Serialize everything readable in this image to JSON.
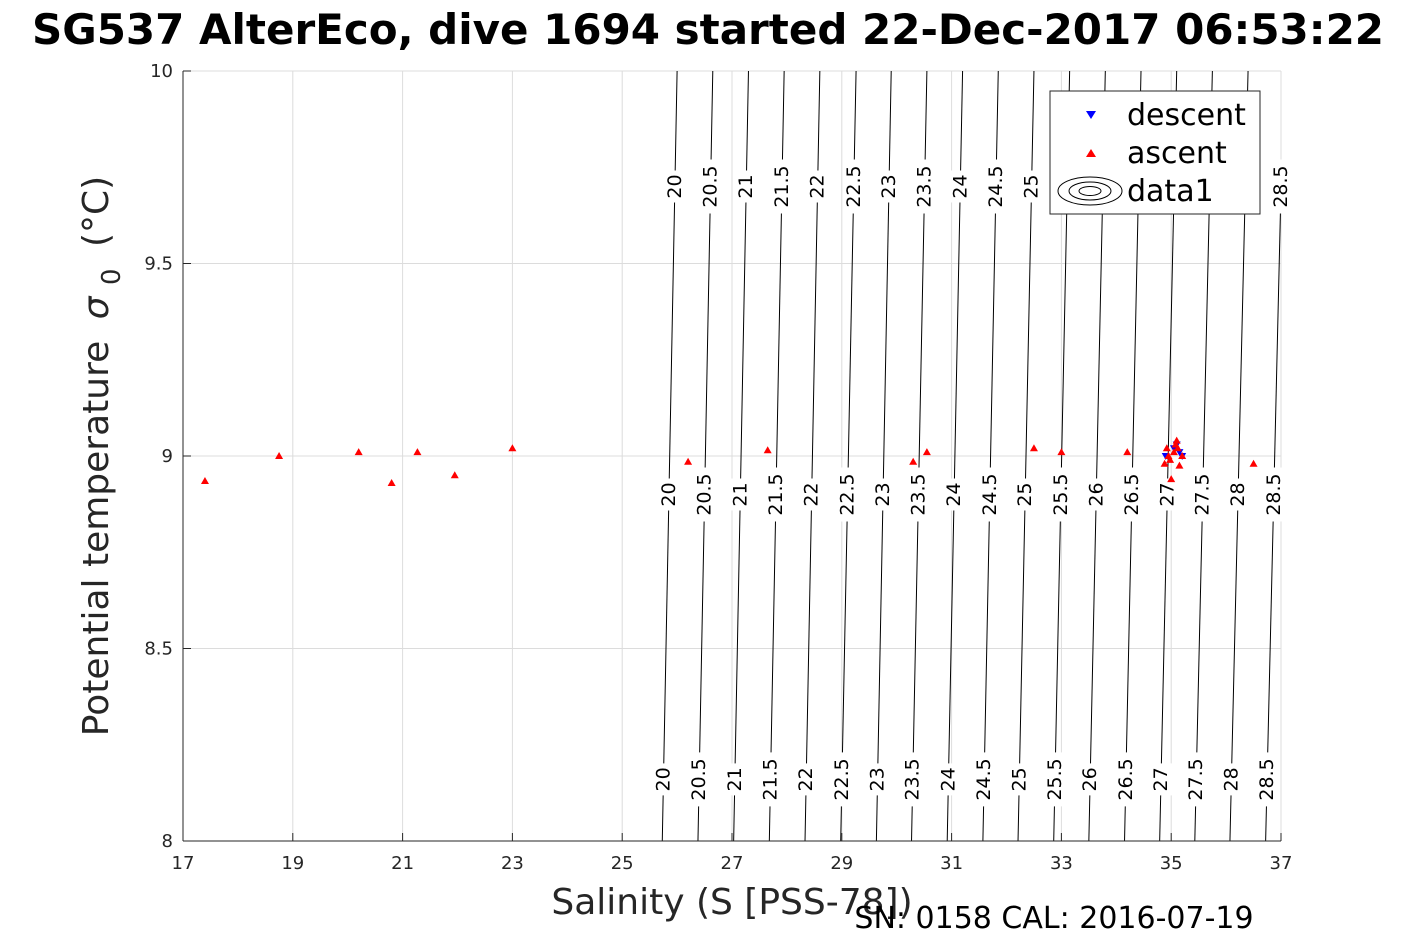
{
  "title": "SG537 AlterEco, dive 1694 started 22-Dec-2017 06:53:22",
  "footer": "SN: 0158  CAL: 2016-07-19",
  "colors": {
    "descent": "#0000ff",
    "ascent": "#ff0000",
    "contour": "#000000",
    "grid": "#dcdcdc",
    "axis": "#262626"
  },
  "chart_data": {
    "type": "scatter",
    "title": "SG537 AlterEco, dive 1694 started 22-Dec-2017 06:53:22",
    "xlabel": "Salinity (S [PSS-78])",
    "ylabel": "Potential temperature",
    "ylabel_symbol": "σ",
    "ylabel_sub": "0",
    "ylabel_unit": "(°C)",
    "xlim": [
      17,
      37
    ],
    "ylim": [
      8,
      10
    ],
    "xticks": [
      17,
      19,
      21,
      23,
      25,
      27,
      29,
      31,
      33,
      35,
      37
    ],
    "yticks": [
      8,
      8.5,
      9,
      9.5,
      10
    ],
    "grid": true,
    "legend_position": "top-right",
    "legend": [
      {
        "label": "descent",
        "marker": "triangle-down",
        "color": "#0000ff"
      },
      {
        "label": "ascent",
        "marker": "triangle-up",
        "color": "#ff0000"
      },
      {
        "label": "data1",
        "marker": "contour"
      }
    ],
    "series": [
      {
        "name": "descent",
        "marker": "triangle-down",
        "color": "#0000ff",
        "points": [
          [
            34.9,
            9.0
          ],
          [
            35.05,
            9.02
          ],
          [
            35.1,
            9.03
          ],
          [
            35.15,
            9.01
          ],
          [
            35.2,
            9.0
          ]
        ]
      },
      {
        "name": "ascent",
        "marker": "triangle-up",
        "color": "#ff0000",
        "points": [
          [
            17.4,
            8.935
          ],
          [
            18.75,
            9.0
          ],
          [
            20.2,
            9.01
          ],
          [
            20.8,
            8.93
          ],
          [
            21.27,
            9.01
          ],
          [
            21.95,
            8.95
          ],
          [
            23.0,
            9.02
          ],
          [
            26.2,
            8.985
          ],
          [
            27.65,
            9.015
          ],
          [
            30.3,
            8.985
          ],
          [
            30.55,
            9.01
          ],
          [
            32.5,
            9.02
          ],
          [
            33.0,
            9.01
          ],
          [
            34.2,
            9.01
          ],
          [
            34.88,
            8.98
          ],
          [
            34.92,
            9.02
          ],
          [
            34.95,
            9.0
          ],
          [
            34.98,
            8.99
          ],
          [
            35.0,
            8.94
          ],
          [
            35.05,
            9.01
          ],
          [
            35.08,
            9.03
          ],
          [
            35.1,
            9.04
          ],
          [
            35.12,
            9.02
          ],
          [
            35.15,
            8.975
          ],
          [
            35.2,
            9.0
          ],
          [
            36.5,
            8.98
          ]
        ]
      }
    ],
    "contours": {
      "name": "data1",
      "color": "#000000",
      "levels": [
        "20",
        "20.5",
        "21",
        "21.5",
        "22",
        "22.5",
        "23",
        "23.5",
        "24",
        "24.5",
        "25",
        "25.5",
        "26",
        "26.5",
        "27",
        "27.5",
        "28",
        "28.5"
      ],
      "salinity_at_bottom": [
        25.73,
        26.38,
        27.03,
        27.68,
        28.33,
        28.98,
        29.63,
        30.27,
        30.92,
        31.57,
        32.21,
        32.86,
        33.5,
        34.15,
        34.79,
        35.43,
        36.07,
        36.72
      ],
      "salinity_at_top": [
        26.0,
        26.65,
        27.3,
        27.95,
        28.6,
        29.26,
        29.9,
        30.55,
        31.2,
        31.85,
        32.5,
        33.15,
        33.8,
        34.45,
        35.1,
        35.75,
        36.4,
        37.05
      ],
      "label_rows": [
        {
          "theta": 9.7,
          "levels": [
            "20",
            "20.5",
            "21",
            "21.5",
            "22",
            "22.5",
            "23",
            "23.5",
            "24",
            "24.5",
            "25",
            "28.5"
          ]
        },
        {
          "theta": 8.9,
          "levels": [
            "20",
            "20.5",
            "21",
            "21.5",
            "22",
            "22.5",
            "23",
            "23.5",
            "24",
            "24.5",
            "25",
            "25.5",
            "26",
            "26.5",
            "27",
            "27.5",
            "28",
            "28.5"
          ]
        },
        {
          "theta": 8.16,
          "levels": [
            "20",
            "20.5",
            "21",
            "21.5",
            "22",
            "22.5",
            "23",
            "23.5",
            "24",
            "24.5",
            "25",
            "25.5",
            "26",
            "26.5",
            "27",
            "27.5",
            "28",
            "28.5"
          ]
        }
      ]
    }
  }
}
